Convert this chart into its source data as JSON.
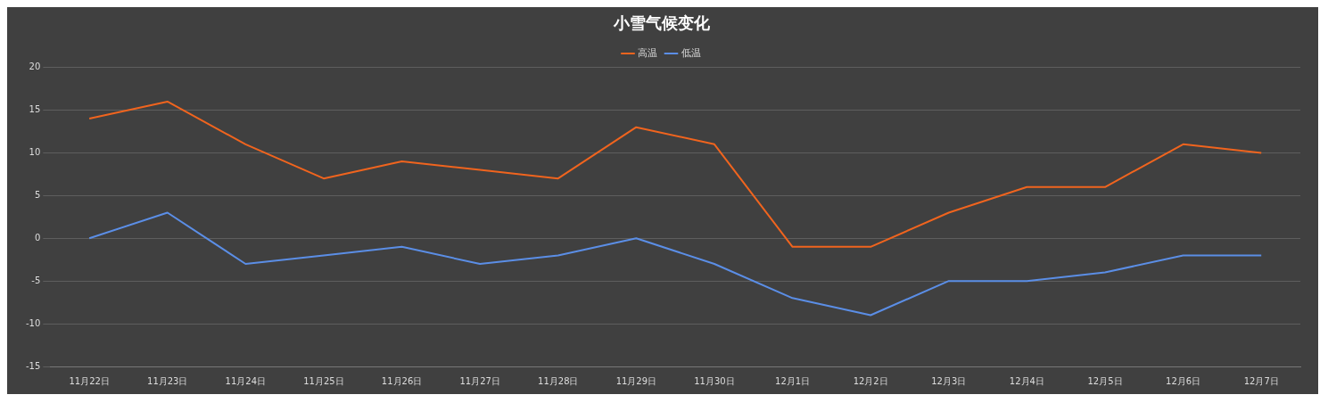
{
  "chart_data": {
    "type": "line",
    "title": "小雪气候变化",
    "categories": [
      "11月22日",
      "11月23日",
      "11月24日",
      "11月25日",
      "11月26日",
      "11月27日",
      "11月28日",
      "11月29日",
      "11月30日",
      "12月1日",
      "12月2日",
      "12月3日",
      "12月4日",
      "12月5日",
      "12月6日",
      "12月7日"
    ],
    "series": [
      {
        "name": "高温",
        "color": "#f0641e",
        "values": [
          14,
          16,
          11,
          7,
          9,
          8,
          7,
          13,
          11,
          -1,
          -1,
          3,
          6,
          6,
          11,
          10
        ]
      },
      {
        "name": "低温",
        "color": "#5b8ee6",
        "values": [
          0,
          3,
          -3,
          -2,
          -1,
          -3,
          -2,
          0,
          -3,
          -7,
          -9,
          -5,
          -5,
          -4,
          -2,
          -2
        ]
      }
    ],
    "ylim": [
      -15,
      20
    ],
    "yticks": [
      -15,
      -10,
      -5,
      0,
      5,
      10,
      15,
      20
    ],
    "grid": "y",
    "legend": "top",
    "marker": "none",
    "line_style": "solid"
  }
}
